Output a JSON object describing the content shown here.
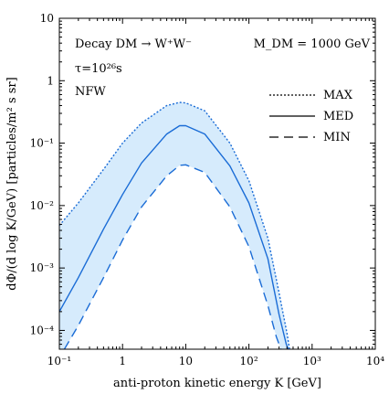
{
  "chart_data": {
    "type": "line",
    "xscale": "log",
    "yscale": "log",
    "xlim": [
      0.1,
      10000
    ],
    "ylim": [
      5e-05,
      10
    ],
    "xlabel": "anti-proton kinetic energy K [GeV]",
    "ylabel": "dΦ/(d log K/GeV) [particles/m² s sr]",
    "x_ticks": [
      {
        "value": 0.1,
        "label": "10⁻¹"
      },
      {
        "value": 1,
        "label": "1"
      },
      {
        "value": 10,
        "label": "10"
      },
      {
        "value": 100,
        "label": "10²"
      },
      {
        "value": 1000,
        "label": "10³"
      },
      {
        "value": 10000,
        "label": "10⁴"
      }
    ],
    "y_ticks": [
      {
        "value": 0.0001,
        "label": "10⁻⁴"
      },
      {
        "value": 0.001,
        "label": "10⁻³"
      },
      {
        "value": 0.01,
        "label": "10⁻²"
      },
      {
        "value": 0.1,
        "label": "10⁻¹"
      },
      {
        "value": 1,
        "label": "1"
      },
      {
        "value": 10,
        "label": "10"
      }
    ],
    "annotations": {
      "line1": "Decay DM → W⁺W⁻",
      "line2": "τ=10²⁶s",
      "line3": "NFW",
      "mass": "M_DM = 1000 GeV"
    },
    "legend_position": "top-right",
    "band_color": "#d6ebfc",
    "line_color": "#1a6cd6",
    "series": [
      {
        "name": "MAX",
        "style": "dotted",
        "x": [
          0.1,
          0.2,
          0.5,
          1,
          2,
          5,
          8,
          10,
          20,
          50,
          100,
          200,
          300,
          400,
          440
        ],
        "y": [
          0.0048,
          0.011,
          0.038,
          0.1,
          0.21,
          0.4,
          0.45,
          0.44,
          0.33,
          0.1,
          0.025,
          0.003,
          0.0004,
          9e-05,
          5e-05
        ]
      },
      {
        "name": "MED",
        "style": "solid",
        "x": [
          0.1,
          0.2,
          0.5,
          1,
          2,
          5,
          8,
          10,
          20,
          50,
          100,
          200,
          300,
          390,
          420
        ],
        "y": [
          0.0002,
          0.0007,
          0.0042,
          0.015,
          0.048,
          0.14,
          0.19,
          0.19,
          0.14,
          0.043,
          0.011,
          0.0014,
          0.00018,
          6e-05,
          5e-05
        ]
      },
      {
        "name": "MIN",
        "style": "dashed",
        "x": [
          0.12,
          0.2,
          0.5,
          1,
          2,
          5,
          8,
          10,
          20,
          50,
          100,
          200,
          270,
          320
        ],
        "y": [
          5e-05,
          0.00012,
          0.0007,
          0.0028,
          0.0095,
          0.03,
          0.044,
          0.045,
          0.034,
          0.0095,
          0.0022,
          0.00025,
          8e-05,
          5e-05
        ]
      }
    ]
  }
}
